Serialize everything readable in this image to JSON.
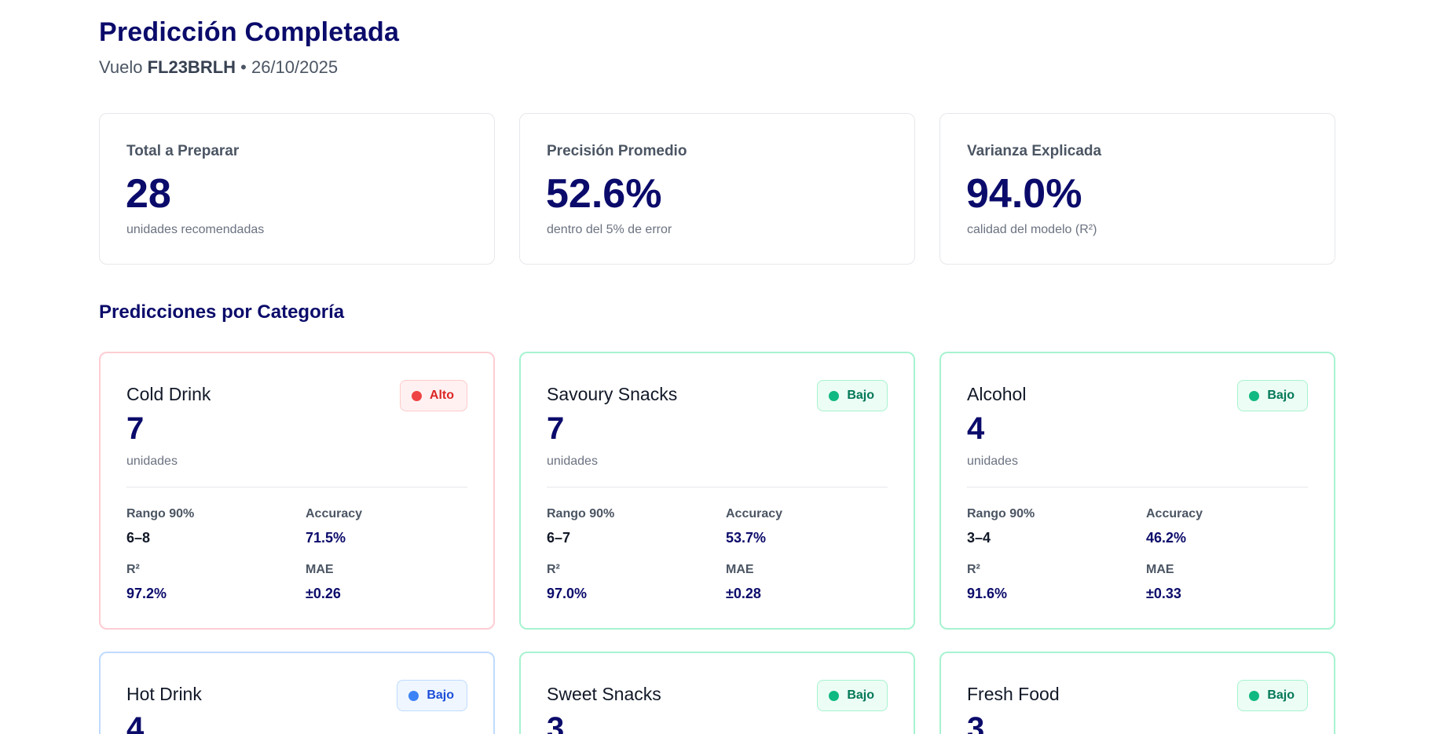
{
  "header": {
    "title": "Predicción Completada",
    "subtitle_prefix": "Vuelo ",
    "flight_code": "FL23BRLH",
    "subtitle_suffix": " • 26/10/2025"
  },
  "summary": [
    {
      "label": "Total a Preparar",
      "value": "28",
      "note": "unidades recomendadas"
    },
    {
      "label": "Precisión Promedio",
      "value": "52.6%",
      "note": "dentro del 5% de error"
    },
    {
      "label": "Varianza Explicada",
      "value": "94.0%",
      "note": "calidad del modelo (R²)"
    }
  ],
  "section_title": "Predicciones por Categoría",
  "metric_labels": {
    "range": "Rango 90%",
    "accuracy": "Accuracy",
    "r2": "R²",
    "mae": "MAE"
  },
  "categories": [
    {
      "name": "Cold Drink",
      "value": "7",
      "unit": "unidades",
      "badge": "Alto",
      "badge_color": "#ef4444",
      "range": "6–8",
      "accuracy": "71.5%",
      "r2": "97.2%",
      "mae": "±0.26"
    },
    {
      "name": "Savoury Snacks",
      "value": "7",
      "unit": "unidades",
      "badge": "Bajo",
      "badge_color": "#10b981",
      "range": "6–7",
      "accuracy": "53.7%",
      "r2": "97.0%",
      "mae": "±0.28"
    },
    {
      "name": "Alcohol",
      "value": "4",
      "unit": "unidades",
      "badge": "Bajo",
      "badge_color": "#10b981",
      "range": "3–4",
      "accuracy": "46.2%",
      "r2": "91.6%",
      "mae": "±0.33"
    },
    {
      "name": "Hot Drink",
      "value": "4",
      "badge": "Bajo",
      "badge_color": "#3b82f6"
    },
    {
      "name": "Sweet Snacks",
      "value": "3",
      "badge": "Bajo",
      "badge_color": "#10b981"
    },
    {
      "name": "Fresh Food",
      "value": "3",
      "badge": "Bajo",
      "badge_color": "#10b981"
    }
  ]
}
